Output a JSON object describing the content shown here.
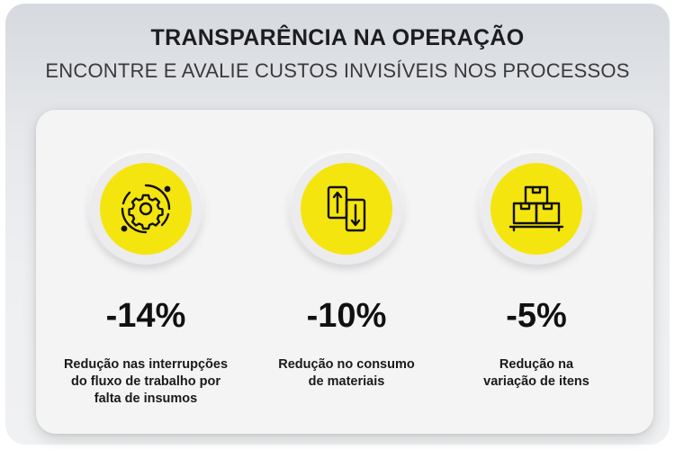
{
  "header": {
    "title": "TRANSPARÊNCIA NA OPERAÇÃO",
    "subtitle": "ENCONTRE E AVALIE CUSTOS INVISÍVEIS NOS PROCESSOS"
  },
  "colors": {
    "accent": "#f5e50e",
    "text": "#111111"
  },
  "stats": [
    {
      "icon": "gear-cycle-icon",
      "value": "-14%",
      "lines": [
        "Redução nas interrupções",
        "do fluxo de trabalho por",
        "falta de insumos"
      ]
    },
    {
      "icon": "up-down-arrows-icon",
      "value": "-10%",
      "lines": [
        "Redução no consumo",
        "de materiais"
      ]
    },
    {
      "icon": "stacked-boxes-icon",
      "value": "-5%",
      "lines": [
        "Redução na",
        "variação de itens"
      ]
    }
  ]
}
